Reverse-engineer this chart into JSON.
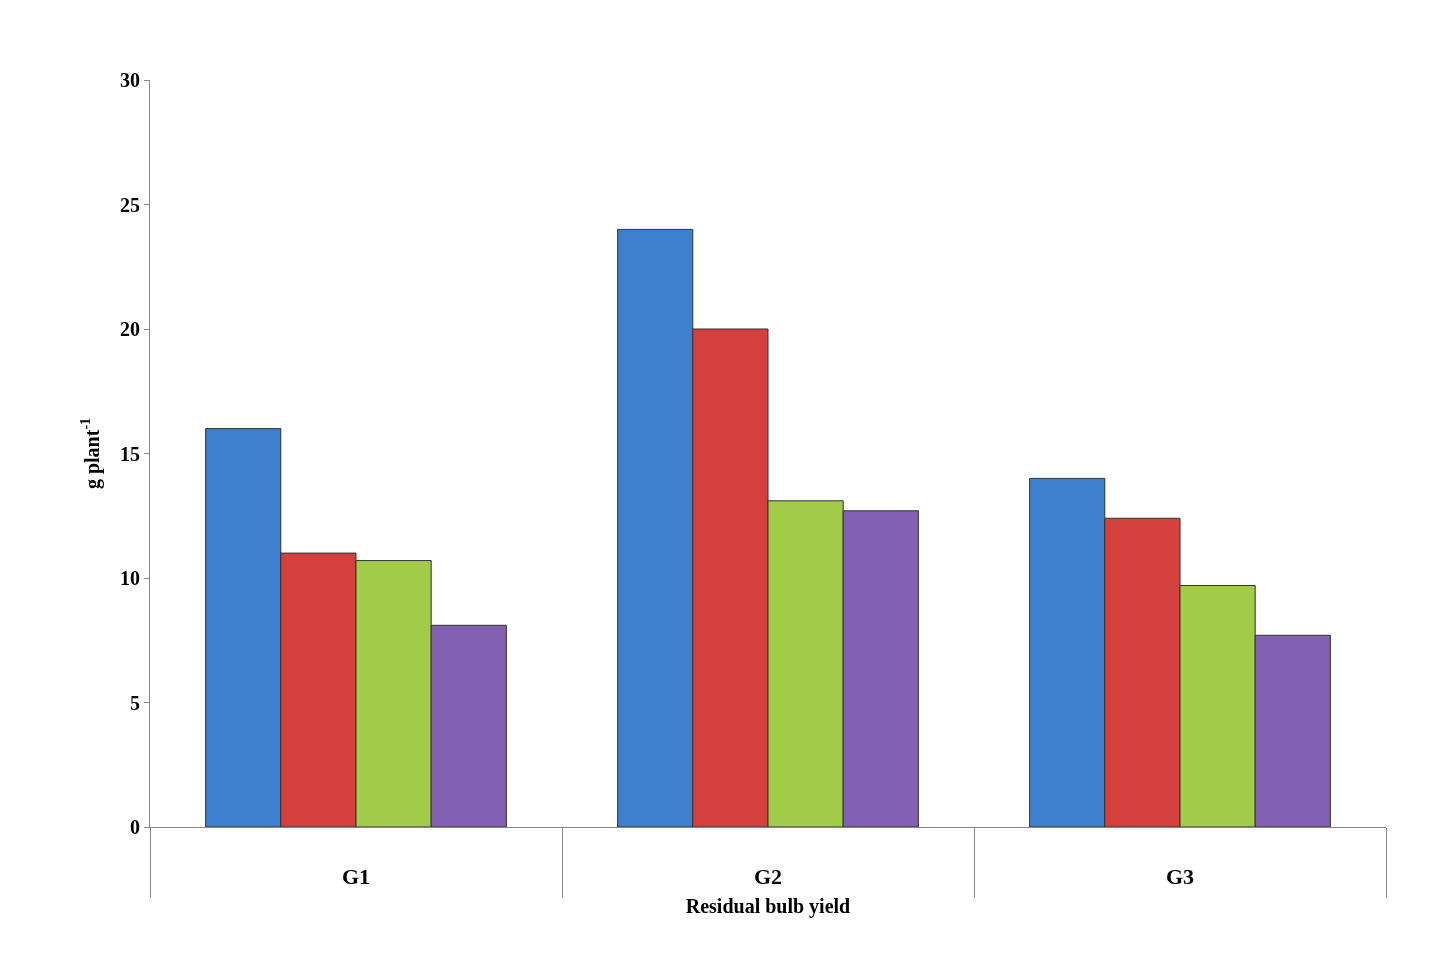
{
  "chart_data": {
    "type": "bar",
    "xlabel": "Residual bulb yield",
    "ylabel": "g plant$^{-1}$",
    "categories": [
      "G1",
      "G2",
      "G3"
    ],
    "series": [
      {
        "color": "#3f7fcf",
        "values": [
          16.0,
          24.0,
          14.0
        ]
      },
      {
        "color": "#d4403d",
        "values": [
          11.0,
          20.0,
          12.4
        ]
      },
      {
        "color": "#a2cb4a",
        "values": [
          10.7,
          13.1,
          9.7
        ]
      },
      {
        "color": "#8260b2",
        "values": [
          8.1,
          12.7,
          7.7
        ]
      }
    ],
    "ylim": [
      0,
      30
    ],
    "yticks": [
      0,
      5,
      10,
      15,
      20,
      25,
      30
    ]
  }
}
